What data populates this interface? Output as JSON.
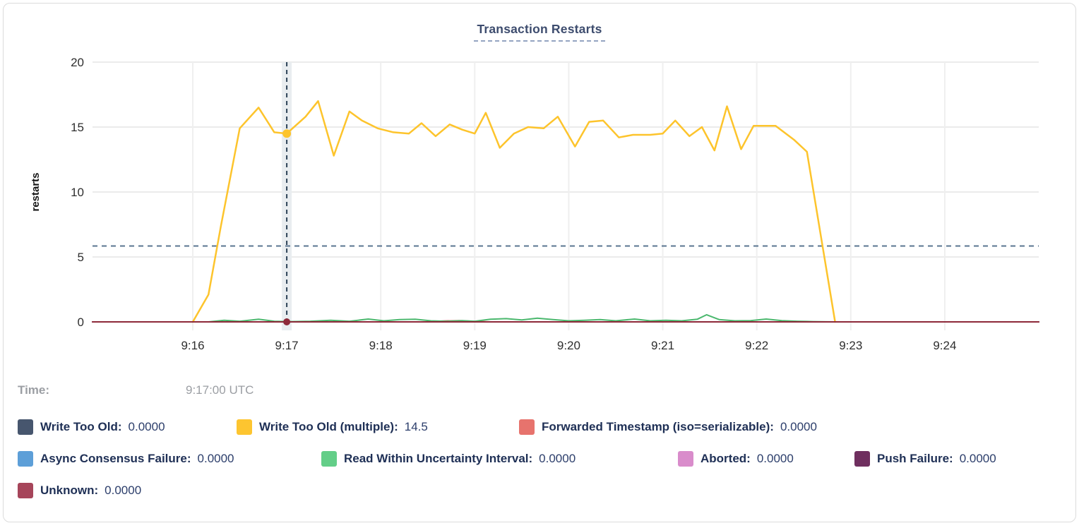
{
  "tooltip": {
    "time_label": "Time:",
    "time_value": "9:17:00 UTC"
  },
  "chart_data": {
    "type": "line",
    "title": "Transaction Restarts",
    "ylabel": "restarts",
    "xlabel": "",
    "ylim": [
      0,
      20
    ],
    "y_ticks": [
      0,
      5,
      10,
      15,
      20
    ],
    "x_domain_seconds": [
      -64,
      540
    ],
    "x_ticks": [
      {
        "t": 0,
        "label": "9:16"
      },
      {
        "t": 60,
        "label": "9:17"
      },
      {
        "t": 120,
        "label": "9:18"
      },
      {
        "t": 180,
        "label": "9:19"
      },
      {
        "t": 240,
        "label": "9:20"
      },
      {
        "t": 300,
        "label": "9:21"
      },
      {
        "t": 360,
        "label": "9:22"
      },
      {
        "t": 420,
        "label": "9:23"
      },
      {
        "t": 480,
        "label": "9:24"
      }
    ],
    "grid": true,
    "legend_position": "bottom",
    "crosshair": {
      "t": 60,
      "time_label": "9:17:00 UTC"
    },
    "threshold_dashed_line_value": 5.84,
    "colors": {
      "grid": "#ebebeb",
      "hover_band": "#e9edf0",
      "crosshair": "#2c4257",
      "threshold_line": "#5a7490",
      "title_text": "#3d4c6e",
      "legend_text": "#1e2f55"
    },
    "series": [
      {
        "name": "Write Too Old",
        "legend_label": "Write Too Old:",
        "value_text": "0.0000",
        "color": "#47566e",
        "points": [
          [
            -64,
            0
          ],
          [
            540,
            0
          ]
        ]
      },
      {
        "name": "Write Too Old (multiple)",
        "legend_label": "Write Too Old (multiple):",
        "value_text": "14.5",
        "color": "#fdc530",
        "line_color": "#fdc42c",
        "cursor_dot": {
          "t": 60,
          "v": 14.5
        },
        "points": [
          [
            0,
            0
          ],
          [
            10,
            2.1
          ],
          [
            18,
            7.4
          ],
          [
            30,
            14.9
          ],
          [
            42,
            16.5
          ],
          [
            52,
            14.6
          ],
          [
            60,
            14.5
          ],
          [
            72,
            15.8
          ],
          [
            80,
            17.0
          ],
          [
            90,
            12.8
          ],
          [
            100,
            16.2
          ],
          [
            108,
            15.5
          ],
          [
            118,
            14.9
          ],
          [
            128,
            14.6
          ],
          [
            138,
            14.5
          ],
          [
            146,
            15.3
          ],
          [
            155,
            14.3
          ],
          [
            164,
            15.2
          ],
          [
            172,
            14.8
          ],
          [
            180,
            14.5
          ],
          [
            187,
            16.1
          ],
          [
            196,
            13.4
          ],
          [
            205,
            14.5
          ],
          [
            214,
            15.0
          ],
          [
            224,
            14.9
          ],
          [
            233,
            15.8
          ],
          [
            244,
            13.5
          ],
          [
            253,
            15.4
          ],
          [
            262,
            15.5
          ],
          [
            272,
            14.2
          ],
          [
            281,
            14.4
          ],
          [
            292,
            14.4
          ],
          [
            300,
            14.5
          ],
          [
            308,
            15.5
          ],
          [
            317,
            14.3
          ],
          [
            325,
            15.0
          ],
          [
            333,
            13.2
          ],
          [
            341,
            16.6
          ],
          [
            350,
            13.3
          ],
          [
            358,
            15.1
          ],
          [
            372,
            15.1
          ],
          [
            384,
            14.0
          ],
          [
            392,
            13.1
          ],
          [
            410,
            0
          ]
        ]
      },
      {
        "name": "Forwarded Timestamp (iso=serializable)",
        "legend_label": "Forwarded Timestamp (iso=serializable):",
        "value_text": "0.0000",
        "color": "#e7736d",
        "line_color": "#d9534f",
        "points": [
          [
            -64,
            0
          ],
          [
            150,
            0
          ],
          [
            160,
            0.07
          ],
          [
            170,
            0.09
          ],
          [
            180,
            0.03
          ],
          [
            190,
            0
          ],
          [
            540,
            0
          ]
        ]
      },
      {
        "name": "Async Consensus Failure",
        "legend_label": "Async Consensus Failure:",
        "value_text": "0.0000",
        "color": "#5d9fd8",
        "points": [
          [
            -64,
            0
          ],
          [
            540,
            0
          ]
        ]
      },
      {
        "name": "Read Within Uncertainty Interval",
        "legend_label": "Read Within Uncertainty Interval:",
        "value_text": "0.0000",
        "color": "#63ce88",
        "line_color": "#4bb86e",
        "points": [
          [
            -64,
            0
          ],
          [
            10,
            0
          ],
          [
            20,
            0.12
          ],
          [
            30,
            0.05
          ],
          [
            42,
            0.2
          ],
          [
            52,
            0.05
          ],
          [
            62,
            0.02
          ],
          [
            75,
            0.05
          ],
          [
            88,
            0.12
          ],
          [
            100,
            0.05
          ],
          [
            112,
            0.22
          ],
          [
            122,
            0.08
          ],
          [
            132,
            0.18
          ],
          [
            142,
            0.2
          ],
          [
            152,
            0.08
          ],
          [
            162,
            0.05
          ],
          [
            172,
            0.1
          ],
          [
            180,
            0.05
          ],
          [
            190,
            0.2
          ],
          [
            200,
            0.25
          ],
          [
            210,
            0.15
          ],
          [
            220,
            0.28
          ],
          [
            230,
            0.18
          ],
          [
            240,
            0.08
          ],
          [
            250,
            0.12
          ],
          [
            260,
            0.18
          ],
          [
            270,
            0.08
          ],
          [
            282,
            0.22
          ],
          [
            292,
            0.08
          ],
          [
            302,
            0.12
          ],
          [
            312,
            0.08
          ],
          [
            322,
            0.2
          ],
          [
            328,
            0.55
          ],
          [
            336,
            0.18
          ],
          [
            346,
            0.08
          ],
          [
            356,
            0.1
          ],
          [
            366,
            0.22
          ],
          [
            376,
            0.1
          ],
          [
            386,
            0.05
          ],
          [
            396,
            0.02
          ],
          [
            410,
            0
          ],
          [
            540,
            0
          ]
        ]
      },
      {
        "name": "Aborted",
        "legend_label": "Aborted:",
        "value_text": "0.0000",
        "color": "#d98ccb",
        "points": [
          [
            -64,
            0
          ],
          [
            540,
            0
          ]
        ]
      },
      {
        "name": "Push Failure",
        "legend_label": "Push Failure:",
        "value_text": "0.0000",
        "color": "#6f2f5f",
        "points": [
          [
            -64,
            0
          ],
          [
            540,
            0
          ]
        ]
      },
      {
        "name": "Unknown",
        "legend_label": "Unknown:",
        "value_text": "0.0000",
        "color": "#a6455a",
        "line_color": "#8d2939",
        "cursor_dot": {
          "t": 60,
          "v": 0
        },
        "points": [
          [
            -64,
            0
          ],
          [
            540,
            0
          ]
        ]
      }
    ]
  }
}
